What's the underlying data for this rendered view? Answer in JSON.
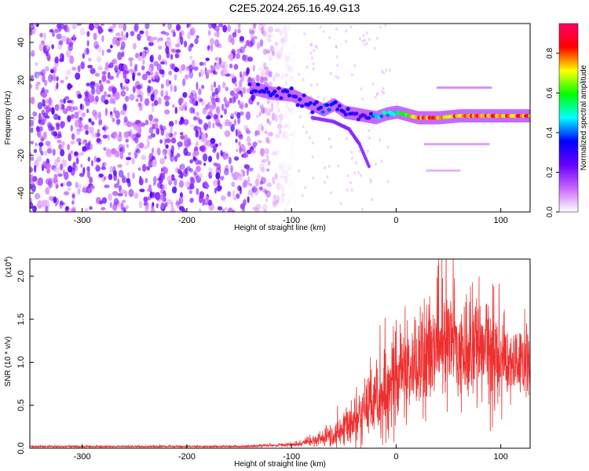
{
  "page_title": "C2E5.2024.265.16.49.G13",
  "colors": {
    "snr_line": "#ee3030",
    "colorbar_stops": [
      "#ffffff",
      "#cc66ff",
      "#6600ff",
      "#0000ff",
      "#00ffff",
      "#00ff00",
      "#ffff00",
      "#ff0000",
      "#ff0066"
    ]
  },
  "chart_data": [
    {
      "type": "heatmap",
      "title": "C2E5.2024.265.16.49.G13",
      "xlabel": "Height of straight line (km)",
      "ylabel": "Frequency (Hz)",
      "xlim": [
        -350,
        128
      ],
      "ylim": [
        -50,
        50
      ],
      "x_ticks": [
        -300,
        -200,
        -100,
        0,
        100
      ],
      "x_tick_labels": [
        "-300",
        "-200",
        "-100",
        "0",
        "100"
      ],
      "y_ticks": [
        -40,
        -20,
        0,
        20,
        40
      ],
      "y_tick_labels": [
        "-40",
        "-20",
        "0",
        "20",
        "40"
      ],
      "colorbar": {
        "label": "Normalized spectral amplitude",
        "ticks": [
          0.0,
          0.2,
          0.4,
          0.6,
          0.8
        ],
        "tick_labels": [
          "0.0",
          "0.2",
          "0.4",
          "0.6",
          "0.8"
        ],
        "range": [
          0,
          0.95
        ]
      },
      "noise_region_x": [
        -350,
        -95
      ],
      "signal_track": [
        {
          "x": -140,
          "y": 16,
          "v": 0.35
        },
        {
          "x": -120,
          "y": 13,
          "v": 0.35
        },
        {
          "x": -100,
          "y": 12,
          "v": 0.35
        },
        {
          "x": -85,
          "y": 8,
          "v": 0.35
        },
        {
          "x": -70,
          "y": 4,
          "v": 0.4
        },
        {
          "x": -60,
          "y": 7,
          "v": 0.4
        },
        {
          "x": -50,
          "y": 3,
          "v": 0.35
        },
        {
          "x": -40,
          "y": 2,
          "v": 0.3
        },
        {
          "x": -30,
          "y": 1,
          "v": 0.3
        },
        {
          "x": -20,
          "y": 0,
          "v": 0.45
        },
        {
          "x": -10,
          "y": 2,
          "v": 0.5
        },
        {
          "x": 0,
          "y": 3,
          "v": 0.5
        },
        {
          "x": 20,
          "y": 0,
          "v": 0.85
        },
        {
          "x": 40,
          "y": 0,
          "v": 0.85
        },
        {
          "x": 60,
          "y": 1,
          "v": 0.8
        },
        {
          "x": 80,
          "y": 1,
          "v": 0.85
        },
        {
          "x": 100,
          "y": 1,
          "v": 0.85
        },
        {
          "x": 120,
          "y": 1,
          "v": 0.85
        }
      ],
      "descending_branch": [
        {
          "x": -80,
          "y": 0,
          "v": 0.2
        },
        {
          "x": -60,
          "y": -2,
          "v": 0.2
        },
        {
          "x": -45,
          "y": -6,
          "v": 0.2
        },
        {
          "x": -35,
          "y": -14,
          "v": 0.15
        },
        {
          "x": -25,
          "y": -27,
          "v": 0.1
        }
      ],
      "harmonic_bands": [
        {
          "x_range": [
            40,
            90
          ],
          "y": 16,
          "v": 0.12
        },
        {
          "x_range": [
            28,
            90
          ],
          "y": -14,
          "v": 0.1
        },
        {
          "x_range": [
            30,
            60
          ],
          "y": -28,
          "v": 0.08
        }
      ]
    },
    {
      "type": "line",
      "xlabel": "Height of straight line (km)",
      "ylabel": "SNR (10 * v/v)",
      "y_multiplier_label": "(x10",
      "y_multiplier_exponent": "4",
      "xlim": [
        -350,
        128
      ],
      "ylim": [
        0,
        2.2
      ],
      "x_ticks": [
        -300,
        -200,
        -100,
        0,
        100
      ],
      "x_tick_labels": [
        "-300",
        "-200",
        "-100",
        "0",
        "100"
      ],
      "y_ticks": [
        0,
        0.5,
        1.0,
        1.5,
        2.0
      ],
      "y_tick_labels": [
        "0.0",
        "0.5",
        "1.0",
        "1.5",
        "2.0"
      ],
      "envelope": [
        {
          "x": -350,
          "mean": 0.02,
          "amp": 0.01
        },
        {
          "x": -150,
          "mean": 0.02,
          "amp": 0.01
        },
        {
          "x": -100,
          "mean": 0.04,
          "amp": 0.02
        },
        {
          "x": -80,
          "mean": 0.08,
          "amp": 0.05
        },
        {
          "x": -60,
          "mean": 0.15,
          "amp": 0.12
        },
        {
          "x": -40,
          "mean": 0.3,
          "amp": 0.25
        },
        {
          "x": -20,
          "mean": 0.55,
          "amp": 0.4
        },
        {
          "x": 0,
          "mean": 0.8,
          "amp": 0.5
        },
        {
          "x": 20,
          "mean": 1.0,
          "amp": 0.5
        },
        {
          "x": 40,
          "mean": 1.2,
          "amp": 0.55
        },
        {
          "x": 60,
          "mean": 1.2,
          "amp": 0.6
        },
        {
          "x": 80,
          "mean": 1.1,
          "amp": 0.6
        },
        {
          "x": 100,
          "mean": 1.0,
          "amp": 0.5
        },
        {
          "x": 128,
          "mean": 0.95,
          "amp": 0.3
        }
      ]
    }
  ]
}
